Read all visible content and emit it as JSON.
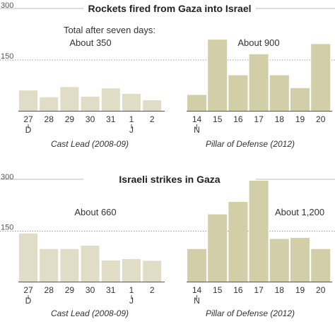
{
  "colors": {
    "cast_lead_bar": "#e0dcc6",
    "pillar_bar": "#d2cfa8",
    "grid": "#999999",
    "axis": "#555555",
    "title_rule": "#bbbbbb"
  },
  "chart_data": [
    {
      "type": "bar",
      "title": "Rockets fired from Gaza into Israel",
      "ylim": [
        0,
        300
      ],
      "yticks": [
        150,
        300
      ],
      "grid": true,
      "panels": [
        {
          "name": "Cast Lead (2008-09)",
          "annotation_lines": [
            "Total after seven days:",
            "About 350"
          ],
          "categories": [
            "27",
            "28",
            "29",
            "30",
            "31",
            "1",
            "2"
          ],
          "sublabels": [
            "D",
            "",
            "",
            "",
            "",
            "J",
            ""
          ],
          "values": [
            60,
            40,
            70,
            42,
            66,
            50,
            31
          ]
        },
        {
          "name": "Pillar of Defense (2012)",
          "annotation_lines": [
            "About 900"
          ],
          "categories": [
            "14",
            "15",
            "16",
            "17",
            "18",
            "19",
            "20"
          ],
          "sublabels": [
            "N",
            "",
            "",
            "",
            "",
            "",
            ""
          ],
          "values": [
            47,
            210,
            105,
            167,
            105,
            67,
            197
          ]
        }
      ]
    },
    {
      "type": "bar",
      "title": "Israeli strikes in Gaza",
      "ylim": [
        0,
        300
      ],
      "yticks": [
        150,
        300
      ],
      "grid": true,
      "panels": [
        {
          "name": "Cast Lead (2008-09)",
          "annotation_lines": [
            "About 660"
          ],
          "categories": [
            "27",
            "28",
            "29",
            "30",
            "31",
            "1",
            "2"
          ],
          "sublabels": [
            "D",
            "",
            "",
            "",
            "",
            "J",
            ""
          ],
          "values": [
            143,
            97,
            97,
            107,
            63,
            67,
            62
          ]
        },
        {
          "name": "Pillar of Defense (2012)",
          "annotation_lines": [
            "About 1,200"
          ],
          "categories": [
            "14",
            "15",
            "16",
            "17",
            "18",
            "19",
            "20"
          ],
          "sublabels": [
            "N",
            "",
            "",
            "",
            "",
            "",
            ""
          ],
          "values": [
            97,
            200,
            237,
            300,
            127,
            130,
            97
          ]
        }
      ]
    }
  ]
}
